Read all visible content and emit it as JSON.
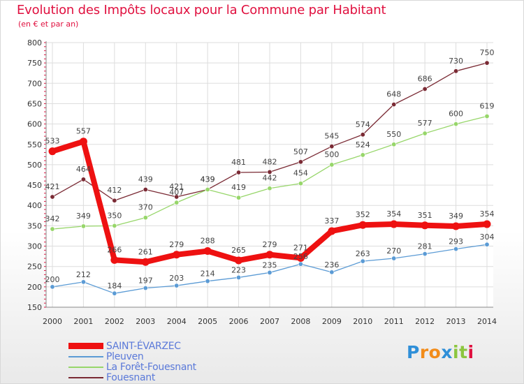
{
  "title": "Evolution des Impôts locaux pour la Commune par Habitant",
  "subtitle": "(en € et par an)",
  "logo": {
    "text": "Proxiti",
    "letters": [
      "P",
      "r",
      "o",
      "x",
      "i",
      "t",
      "i"
    ],
    "colors": [
      "#2f8fd8",
      "#f28c1a",
      "#f28c1a",
      "#2f8fd8",
      "#8cc63f",
      "#8cc63f",
      "#e0103f"
    ]
  },
  "chart_data": {
    "type": "line",
    "title": "Evolution des Impôts locaux pour la Commune par Habitant",
    "subtitle": "(en € et par an)",
    "xlabel": "",
    "ylabel": "",
    "categories": [
      "2000",
      "2001",
      "2002",
      "2003",
      "2004",
      "2005",
      "2006",
      "2007",
      "2008",
      "2009",
      "2010",
      "2011",
      "2012",
      "2013",
      "2014"
    ],
    "ylim": [
      150,
      800
    ],
    "yticks": [
      150,
      200,
      250,
      300,
      350,
      400,
      450,
      500,
      550,
      600,
      650,
      700,
      750,
      800
    ],
    "grid": true,
    "legend_position": "bottom-left",
    "series": [
      {
        "name": "Fouesnant",
        "color": "#7a2a34",
        "values": [
          421,
          464,
          412,
          439,
          421,
          439,
          481,
          482,
          507,
          545,
          574,
          648,
          686,
          730,
          750
        ],
        "labels": [
          "421",
          "464",
          "412",
          "439",
          "421",
          "439",
          "481",
          "482",
          "507",
          "545",
          "574",
          "648",
          "686",
          "730",
          "750"
        ]
      },
      {
        "name": "La Forêt-Fouesnant",
        "color": "#97d66a",
        "values": [
          342,
          349,
          350,
          370,
          407,
          439,
          419,
          442,
          454,
          500,
          524,
          550,
          577,
          600,
          619
        ],
        "labels": [
          "342",
          "349",
          "350",
          "370",
          "407",
          "439",
          "419",
          "442",
          "454",
          "500",
          "524",
          "550",
          "577",
          "600",
          "619"
        ]
      },
      {
        "name": "Pleuven",
        "color": "#5b9bd5",
        "values": [
          200,
          212,
          184,
          197,
          203,
          214,
          223,
          235,
          256,
          236,
          263,
          270,
          281,
          293,
          304
        ],
        "labels": [
          "200",
          "212",
          "184",
          "197",
          "203",
          "214",
          "223",
          "235",
          "256",
          "236",
          "263",
          "270",
          "281",
          "293",
          "304"
        ]
      },
      {
        "name": "SAINT-ÉVARZEC",
        "color": "#ee1111",
        "values": [
          533,
          557,
          266,
          261,
          279,
          288,
          265,
          279,
          271,
          337,
          352,
          354,
          351,
          349,
          354
        ],
        "labels": [
          "533",
          "557",
          "266",
          "261",
          "279",
          "288",
          "265",
          "279",
          "271",
          "337",
          "352",
          "354",
          "351",
          "349",
          "354"
        ]
      }
    ],
    "legend": [
      {
        "name": "SAINT-ÉVARZEC",
        "color": "#ee1111"
      },
      {
        "name": "Pleuven",
        "color": "#5b9bd5"
      },
      {
        "name": "La Forêt-Fouesnant",
        "color": "#97d66a"
      },
      {
        "name": "Fouesnant",
        "color": "#7a2a34"
      }
    ]
  }
}
